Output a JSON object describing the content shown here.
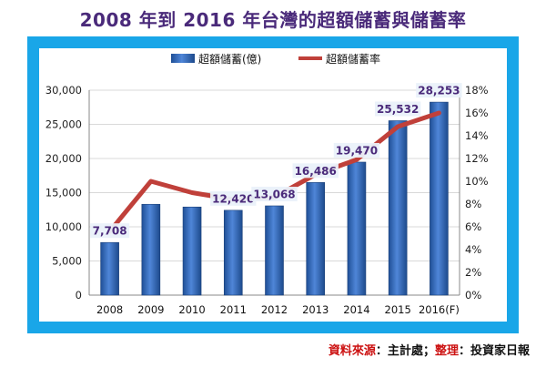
{
  "title": "2008 年到 2016 年台灣的超額儲蓄與儲蓄率",
  "source": {
    "label1": "資料來源",
    "sep1": "：",
    "value1": "主計處",
    "sep2": "；",
    "label2": "整理",
    "sep3": "：",
    "value2": "投資家日報"
  },
  "colors": {
    "frame": "#19a6e8",
    "bar": "#2f67b8",
    "line": "#c0403a",
    "label_text": "#4a2a7a",
    "title": "#4a2a7a"
  },
  "chart_data": {
    "type": "bar",
    "title": "2008 年到 2016 年台灣的超額儲蓄與儲蓄率",
    "categories": [
      "2008",
      "2009",
      "2010",
      "2011",
      "2012",
      "2013",
      "2014",
      "2015",
      "2016(F)"
    ],
    "series": [
      {
        "name": "超額儲蓄(億)",
        "type": "bar",
        "axis": "left",
        "values": [
          7708,
          13300,
          12900,
          12420,
          13068,
          16486,
          19470,
          25532,
          28253
        ],
        "data_labels": [
          "7,708",
          "",
          "",
          "12,420",
          "13,068",
          "16,486",
          "19,470",
          "25,532",
          "28,253"
        ]
      },
      {
        "name": "超額儲蓄率",
        "type": "line",
        "axis": "right",
        "values": [
          5.6,
          10.0,
          9.0,
          8.4,
          8.6,
          10.6,
          11.9,
          14.8,
          16.0
        ]
      }
    ],
    "y_left": {
      "ylim": [
        0,
        30000
      ],
      "ticks": [
        0,
        5000,
        10000,
        15000,
        20000,
        25000,
        30000
      ],
      "tick_labels": [
        "0",
        "5,000",
        "10,000",
        "15,000",
        "20,000",
        "25,000",
        "30,000"
      ]
    },
    "y_right": {
      "ylim": [
        0,
        18
      ],
      "ticks": [
        0,
        2,
        4,
        6,
        8,
        10,
        12,
        14,
        16,
        18
      ],
      "tick_labels": [
        "0%",
        "2%",
        "4%",
        "6%",
        "8%",
        "10%",
        "12%",
        "14%",
        "16%",
        "18%"
      ]
    },
    "legend": {
      "position": "top",
      "items": [
        "超額儲蓄(億)",
        "超額儲蓄率"
      ]
    },
    "grid": true
  }
}
